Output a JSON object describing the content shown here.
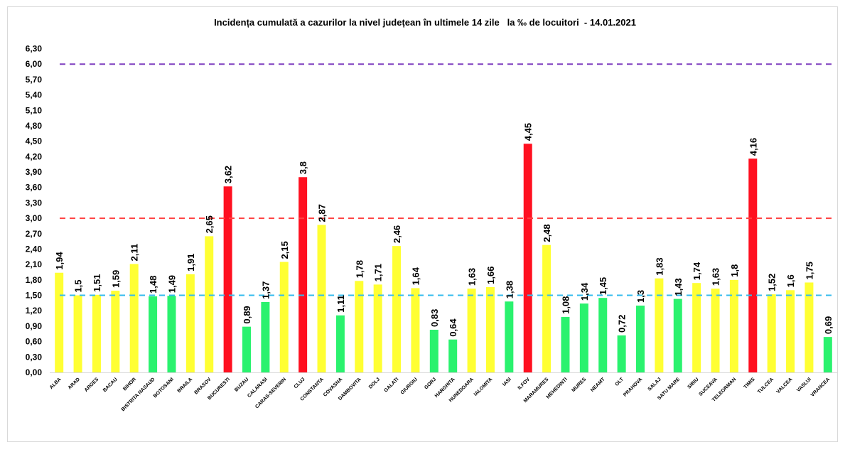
{
  "chart_data": {
    "type": "bar",
    "title": "Incidența cumulată a cazurilor la nivel județean în ultimele 14 zile   la ‰ de locuitori  - 14.01.2021",
    "xlabel": "",
    "ylabel": "",
    "ylim": [
      0,
      6.3
    ],
    "yticks": [
      "0,00",
      "0,30",
      "0,60",
      "0,90",
      "1,20",
      "1,50",
      "1,80",
      "2,10",
      "2,40",
      "2,70",
      "3,00",
      "3,30",
      "3,60",
      "3,90",
      "4,20",
      "4,50",
      "4,80",
      "5,10",
      "5,40",
      "5,70",
      "6,00",
      "6,30"
    ],
    "ytick_values": [
      0,
      0.3,
      0.6,
      0.9,
      1.2,
      1.5,
      1.8,
      2.1,
      2.4,
      2.7,
      3.0,
      3.3,
      3.6,
      3.9,
      4.2,
      4.5,
      4.8,
      5.1,
      5.4,
      5.7,
      6.0,
      6.3
    ],
    "grid": false,
    "legend": "none",
    "categories": [
      "ALBA",
      "ARAD",
      "ARGES",
      "BACAU",
      "BIHOR",
      "BISTRITA NASAUD",
      "BOTOSANI",
      "BRAILA",
      "BRASOV",
      "BUCURESTI",
      "BUZAU",
      "CALARASI",
      "CARAS-SEVERIN",
      "CLUJ",
      "CONSTANTA",
      "COVASNA",
      "DAMBOVITA",
      "DOLJ",
      "GALATI",
      "GIURGIU",
      "GORJ",
      "HARGHITA",
      "HUNEDOARA",
      "IALOMITA",
      "IASI",
      "ILFOV",
      "MARAMURES",
      "MEHEDINTI",
      "MURES",
      "NEAMT",
      "OLT",
      "PRAHOVA",
      "SALAJ",
      "SATU MARE",
      "SIBIU",
      "SUCEAVA",
      "TELEORMAN",
      "TIMIS",
      "TULCEA",
      "VALCEA",
      "VASLUI",
      "VRANCEA"
    ],
    "values": [
      1.94,
      1.5,
      1.51,
      1.59,
      2.11,
      1.48,
      1.49,
      1.91,
      2.65,
      3.62,
      0.89,
      1.37,
      2.15,
      3.8,
      2.87,
      1.11,
      1.78,
      1.71,
      2.46,
      1.64,
      0.83,
      0.64,
      1.63,
      1.66,
      1.38,
      4.45,
      2.48,
      1.08,
      1.34,
      1.45,
      0.72,
      1.3,
      1.83,
      1.43,
      1.74,
      1.63,
      1.8,
      4.16,
      1.52,
      1.6,
      1.75,
      0.69
    ],
    "data_labels": [
      "1,94",
      "1,5",
      "1,51",
      "1,59",
      "2,11",
      "1,48",
      "1,49",
      "1,91",
      "2,65",
      "3,62",
      "0,89",
      "1,37",
      "2,15",
      "3,8",
      "2,87",
      "1,11",
      "1,78",
      "1,71",
      "2,46",
      "1,64",
      "0,83",
      "0,64",
      "1,63",
      "1,66",
      "1,38",
      "4,45",
      "2,48",
      "1,08",
      "1,34",
      "1,45",
      "0,72",
      "1,3",
      "1,83",
      "1,43",
      "1,74",
      "1,63",
      "1,8",
      "4,16",
      "1,52",
      "1,6",
      "1,75",
      "0,69"
    ],
    "reference_lines": [
      {
        "value": 6.0,
        "color": "#7f3fbf"
      },
      {
        "value": 3.0,
        "color": "#ff4040"
      },
      {
        "value": 1.5,
        "color": "#33bbee"
      }
    ],
    "colors": {
      "green": "#2af26e",
      "yellow": "#ffff33",
      "red": "#ff1020"
    },
    "thresholds": {
      "green_below": 1.5,
      "red_above": 3.0
    }
  }
}
